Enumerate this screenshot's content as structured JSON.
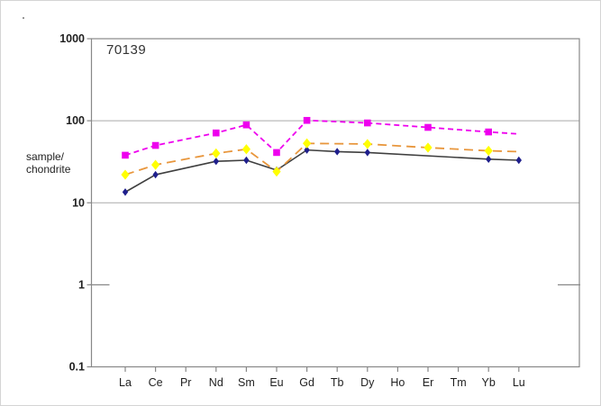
{
  "chart_data": {
    "type": "line",
    "title": "70139",
    "ylabel_line1": "sample/",
    "ylabel_line2": "chondrite",
    "y_scale": "log",
    "y_range": [
      0.1,
      1000
    ],
    "y_ticks": [
      "1000",
      "100",
      "10",
      "1",
      "0.1"
    ],
    "y_tick_values": [
      1000,
      100,
      10,
      1,
      0.1
    ],
    "grid_values": [
      100,
      10
    ],
    "inner_tick_value": 1,
    "x_categories": [
      "La",
      "Ce",
      "Pr",
      "Nd",
      "Sm",
      "Eu",
      "Gd",
      "Tb",
      "Dy",
      "Ho",
      "Er",
      "Tm",
      "Yb",
      "Lu"
    ],
    "legend": "none",
    "colors": {
      "magenta_series": "#EE00EE",
      "orange_line": "#E8963C",
      "yellow_marker": "#FFFF00",
      "dark_line": "#3F3F3F",
      "navy_marker": "#1F1F8C",
      "gridline": "#AAAAAA",
      "frame": "#888888",
      "text": "#1F1F1F"
    },
    "series": [
      {
        "name": "dark-solid-diamond",
        "line_color": "#3F3F3F",
        "marker_color": "#1F1F8C",
        "marker": "diamond",
        "marker_size": 3.2,
        "dash": "",
        "width": 1.6,
        "points": [
          {
            "x": "La",
            "y": 13.5,
            "marker": true
          },
          {
            "x": "Ce",
            "y": 22,
            "marker": true
          },
          {
            "x": "Nd",
            "y": 32,
            "marker": true
          },
          {
            "x": "Sm",
            "y": 33,
            "marker": true
          },
          {
            "x": "Eu",
            "y": 25,
            "marker": true
          },
          {
            "x": "Gd",
            "y": 44,
            "marker": true
          },
          {
            "x": "Tb",
            "y": 42,
            "marker": true
          },
          {
            "x": "Dy",
            "y": 41,
            "marker": true
          },
          {
            "x": "Yb",
            "y": 34,
            "marker": true
          },
          {
            "x": "Lu",
            "y": 33,
            "marker": true
          }
        ]
      },
      {
        "name": "orange-dashed-yellow-diamond",
        "line_color": "#E8963C",
        "marker_color": "#FFFF00",
        "marker": "diamond",
        "marker_size": 4.6,
        "dash": "10,6",
        "width": 1.8,
        "points": [
          {
            "x": "La",
            "y": 22,
            "marker": true
          },
          {
            "x": "Ce",
            "y": 29,
            "marker": true
          },
          {
            "x": "Nd",
            "y": 40,
            "marker": true
          },
          {
            "x": "Sm",
            "y": 45,
            "marker": true
          },
          {
            "x": "Eu",
            "y": 24,
            "marker": true
          },
          {
            "x": "Gd",
            "y": 53,
            "marker": true
          },
          {
            "x": "Dy",
            "y": 52,
            "marker": true
          },
          {
            "x": "Er",
            "y": 47,
            "marker": true
          },
          {
            "x": "Yb",
            "y": 43,
            "marker": true
          },
          {
            "x": "Lu",
            "y": 42,
            "marker": false
          }
        ]
      },
      {
        "name": "magenta-dashed-square",
        "line_color": "#EE00EE",
        "marker_color": "#EE00EE",
        "marker": "square",
        "marker_size": 3.8,
        "dash": "6,4",
        "width": 1.8,
        "points": [
          {
            "x": "La",
            "y": 38,
            "marker": true
          },
          {
            "x": "Ce",
            "y": 50,
            "marker": true
          },
          {
            "x": "Nd",
            "y": 71,
            "marker": true
          },
          {
            "x": "Sm",
            "y": 89,
            "marker": true
          },
          {
            "x": "Eu",
            "y": 41,
            "marker": true
          },
          {
            "x": "Gd",
            "y": 101,
            "marker": true
          },
          {
            "x": "Dy",
            "y": 94,
            "marker": true
          },
          {
            "x": "Er",
            "y": 83,
            "marker": true
          },
          {
            "x": "Yb",
            "y": 73,
            "marker": true
          },
          {
            "x": "Lu",
            "y": 69,
            "marker": false
          }
        ]
      }
    ]
  }
}
